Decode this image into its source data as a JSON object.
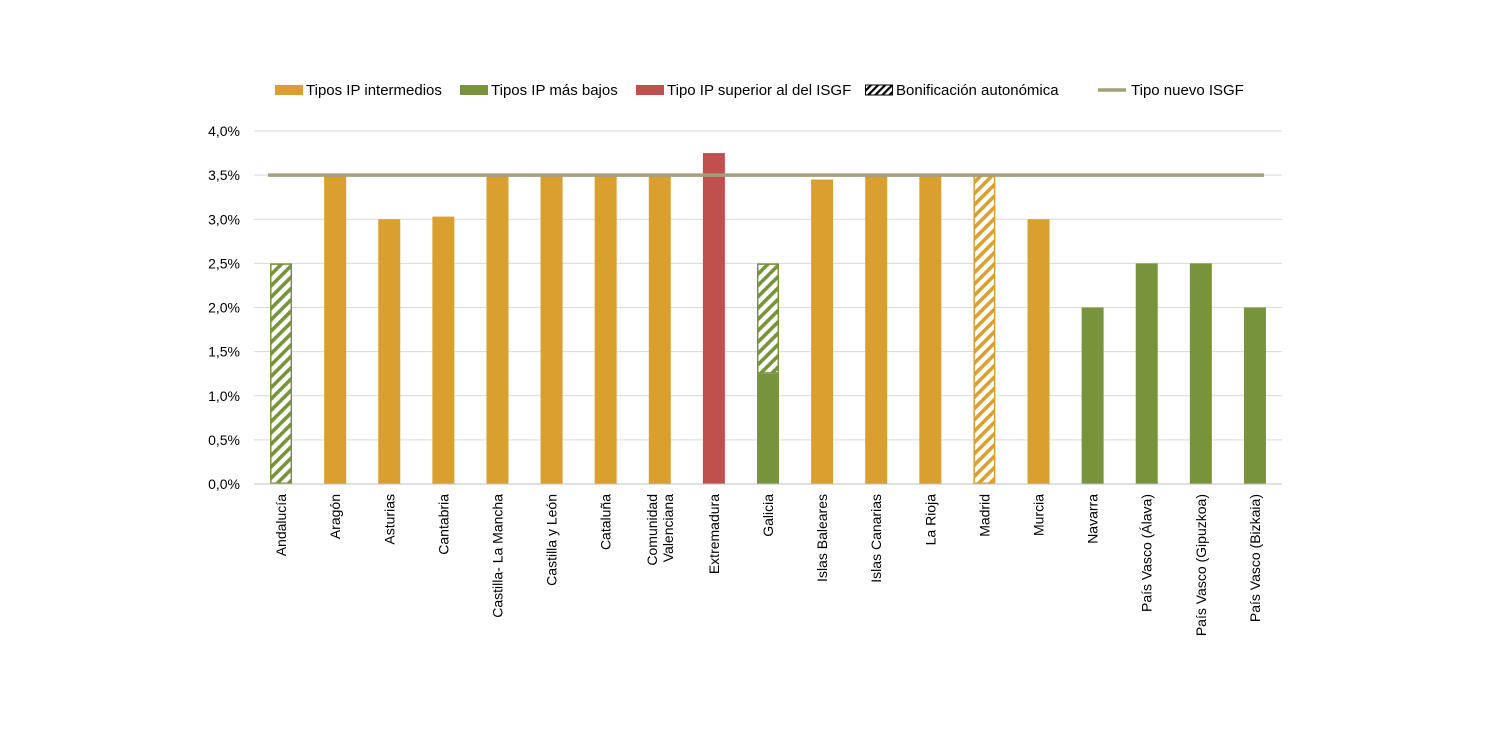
{
  "chart_data": {
    "type": "bar",
    "title": "",
    "xlabel": "",
    "ylabel": "",
    "ylim": [
      0,
      4.0
    ],
    "yticks": [
      {
        "value": 0.0,
        "label": "0,0%"
      },
      {
        "value": 0.5,
        "label": "0,5%"
      },
      {
        "value": 1.0,
        "label": "1,0%"
      },
      {
        "value": 1.5,
        "label": "1,5%"
      },
      {
        "value": 2.0,
        "label": "2,0%"
      },
      {
        "value": 2.5,
        "label": "2,5%"
      },
      {
        "value": 3.0,
        "label": "3,0%"
      },
      {
        "value": 3.5,
        "label": "3,5%"
      },
      {
        "value": 4.0,
        "label": "4,0%"
      }
    ],
    "grid": true,
    "legend_position": "top",
    "legend": [
      {
        "key": "intermedios",
        "label": "Tipos IP intermedios",
        "kind": "solid",
        "color": "#D9A030"
      },
      {
        "key": "bajos",
        "label": "Tipos IP más bajos",
        "kind": "solid",
        "color": "#77933C"
      },
      {
        "key": "superior",
        "label": "Tipo IP superior al del ISGF",
        "kind": "solid",
        "color": "#C0504D"
      },
      {
        "key": "bonificacion",
        "label": "Bonificación autonómica",
        "kind": "hatch",
        "color": "#000000"
      },
      {
        "key": "isgf",
        "label": "Tipo nuevo ISGF",
        "kind": "line",
        "color": "#A39E7E"
      }
    ],
    "reference_line": {
      "name": "Tipo nuevo ISGF",
      "value": 3.5,
      "color": "#A39E7E"
    },
    "categories": [
      {
        "label": [
          "Andalucía"
        ],
        "solid": 0,
        "solid_type": "bajos",
        "hatched": 2.5,
        "hatch_type": "bajos"
      },
      {
        "label": [
          "Aragón"
        ],
        "solid": 3.5,
        "solid_type": "intermedios",
        "hatched": 0,
        "hatch_type": ""
      },
      {
        "label": [
          "Asturias"
        ],
        "solid": 3.0,
        "solid_type": "intermedios",
        "hatched": 0,
        "hatch_type": ""
      },
      {
        "label": [
          "Cantabria"
        ],
        "solid": 3.03,
        "solid_type": "intermedios",
        "hatched": 0,
        "hatch_type": ""
      },
      {
        "label": [
          "Castilla- La Mancha"
        ],
        "solid": 3.5,
        "solid_type": "intermedios",
        "hatched": 0,
        "hatch_type": ""
      },
      {
        "label": [
          "Castilla y León"
        ],
        "solid": 3.5,
        "solid_type": "intermedios",
        "hatched": 0,
        "hatch_type": ""
      },
      {
        "label": [
          "Cataluña"
        ],
        "solid": 3.5,
        "solid_type": "intermedios",
        "hatched": 0,
        "hatch_type": ""
      },
      {
        "label": [
          "Comunidad",
          "Valenciana"
        ],
        "solid": 3.5,
        "solid_type": "intermedios",
        "hatched": 0,
        "hatch_type": ""
      },
      {
        "label": [
          "Extremadura"
        ],
        "solid": 3.75,
        "solid_type": "superior",
        "hatched": 0,
        "hatch_type": ""
      },
      {
        "label": [
          "Galicia"
        ],
        "solid": 1.25,
        "solid_type": "bajos",
        "hatched": 1.25,
        "hatch_type": "bajos"
      },
      {
        "label": [
          "Islas Baleares"
        ],
        "solid": 3.45,
        "solid_type": "intermedios",
        "hatched": 0,
        "hatch_type": ""
      },
      {
        "label": [
          "Islas Canarias"
        ],
        "solid": 3.5,
        "solid_type": "intermedios",
        "hatched": 0,
        "hatch_type": ""
      },
      {
        "label": [
          "La Rioja"
        ],
        "solid": 3.5,
        "solid_type": "intermedios",
        "hatched": 0,
        "hatch_type": ""
      },
      {
        "label": [
          "Madrid"
        ],
        "solid": 0,
        "solid_type": "intermedios",
        "hatched": 3.5,
        "hatch_type": "intermedios"
      },
      {
        "label": [
          "Murcia"
        ],
        "solid": 3.0,
        "solid_type": "intermedios",
        "hatched": 0,
        "hatch_type": ""
      },
      {
        "label": [
          "Navarra"
        ],
        "solid": 2.0,
        "solid_type": "bajos",
        "hatched": 0,
        "hatch_type": ""
      },
      {
        "label": [
          "País Vasco (Álava)"
        ],
        "solid": 2.5,
        "solid_type": "bajos",
        "hatched": 0,
        "hatch_type": ""
      },
      {
        "label": [
          "País Vasco (Gipuzkoa)"
        ],
        "solid": 2.5,
        "solid_type": "bajos",
        "hatched": 0,
        "hatch_type": ""
      },
      {
        "label": [
          "País Vasco (Bizkaia)"
        ],
        "solid": 2.0,
        "solid_type": "bajos",
        "hatched": 0,
        "hatch_type": ""
      }
    ]
  }
}
